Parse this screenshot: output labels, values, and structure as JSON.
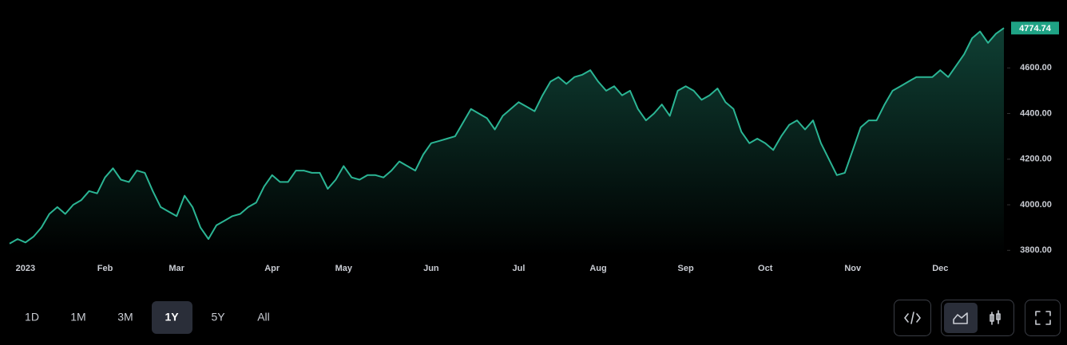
{
  "chart_data": {
    "type": "area",
    "color": "#2bb594",
    "categories": [
      null,
      null,
      "2023",
      null,
      null,
      null,
      null,
      null,
      null,
      null,
      null,
      null,
      "Feb",
      null,
      null,
      null,
      null,
      null,
      null,
      null,
      null,
      "Mar",
      null,
      null,
      null,
      null,
      null,
      null,
      null,
      null,
      null,
      null,
      null,
      "Apr",
      null,
      null,
      null,
      null,
      null,
      null,
      null,
      null,
      "May",
      null,
      null,
      null,
      null,
      null,
      null,
      null,
      null,
      null,
      null,
      "Jun",
      null,
      null,
      null,
      null,
      null,
      null,
      null,
      null,
      null,
      null,
      "Jul",
      null,
      null,
      null,
      null,
      null,
      null,
      null,
      null,
      null,
      "Aug",
      null,
      null,
      null,
      null,
      null,
      null,
      null,
      null,
      null,
      null,
      "Sep",
      null,
      null,
      null,
      null,
      null,
      null,
      null,
      null,
      null,
      "Oct",
      null,
      null,
      null,
      null,
      null,
      null,
      null,
      null,
      null,
      null,
      "Nov",
      null,
      null,
      null,
      null,
      null,
      null,
      null,
      null,
      null,
      null,
      "Dec",
      null,
      null,
      null,
      null,
      null,
      null,
      null,
      null
    ],
    "values": [
      3830,
      3850,
      3835,
      3860,
      3900,
      3960,
      3990,
      3960,
      4000,
      4020,
      4060,
      4050,
      4120,
      4160,
      4110,
      4100,
      4150,
      4140,
      4060,
      3990,
      3970,
      3950,
      4040,
      3990,
      3900,
      3850,
      3910,
      3930,
      3950,
      3960,
      3990,
      4010,
      4080,
      4130,
      4100,
      4100,
      4150,
      4150,
      4140,
      4140,
      4070,
      4110,
      4170,
      4120,
      4110,
      4130,
      4130,
      4120,
      4150,
      4190,
      4170,
      4150,
      4220,
      4270,
      4280,
      4290,
      4300,
      4360,
      4420,
      4400,
      4380,
      4330,
      4390,
      4420,
      4450,
      4430,
      4410,
      4480,
      4540,
      4560,
      4530,
      4560,
      4570,
      4590,
      4540,
      4500,
      4520,
      4480,
      4500,
      4420,
      4370,
      4400,
      4440,
      4390,
      4500,
      4520,
      4500,
      4460,
      4480,
      4510,
      4450,
      4420,
      4320,
      4270,
      4290,
      4270,
      4240,
      4300,
      4350,
      4370,
      4330,
      4370,
      4270,
      4200,
      4130,
      4140,
      4240,
      4340,
      4370,
      4370,
      4440,
      4500,
      4520,
      4540,
      4560,
      4560,
      4560,
      4590,
      4560,
      4610,
      4660,
      4730,
      4760,
      4710,
      4750,
      4774.74
    ],
    "ylim": [
      3780,
      4800
    ],
    "yticks": [
      {
        "value": 3800,
        "label": "3800.00"
      },
      {
        "value": 4000,
        "label": "4000.00"
      },
      {
        "value": 4200,
        "label": "4200.00"
      },
      {
        "value": 4400,
        "label": "4400.00"
      },
      {
        "value": 4600,
        "label": "4600.00"
      }
    ]
  },
  "ranges": [
    "1D",
    "1M",
    "3M",
    "1Y",
    "5Y",
    "All"
  ]
}
